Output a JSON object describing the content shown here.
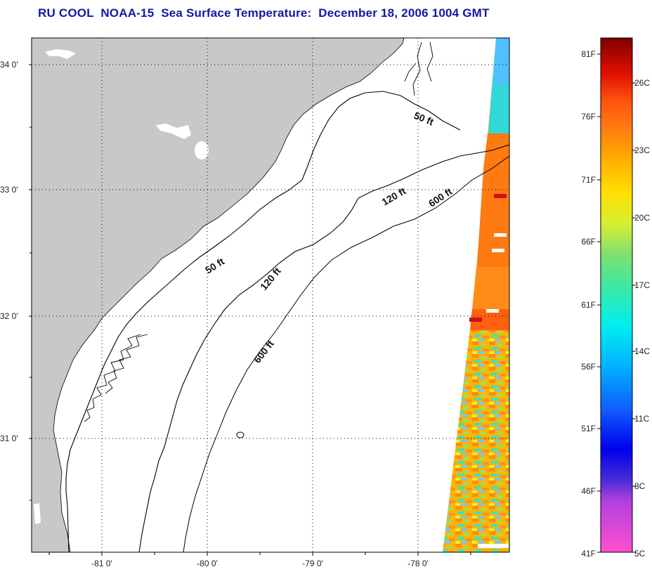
{
  "title": "RU COOL  NOAA-15  Sea Surface Temperature:  December 18, 2006 1004 GMT",
  "map": {
    "lat_labels": [
      "34 0'",
      "33 0'",
      "32 0'",
      "31 0'"
    ],
    "lon_labels": [
      "-81 0'",
      "-80 0'",
      "-79 0'",
      "-78 0'"
    ],
    "depth_labels": [
      "50 ft",
      "50 ft",
      "120 ft",
      "120 ft",
      "600 ft",
      "600 ft"
    ]
  },
  "colorbar": {
    "fahrenheit": [
      "81F",
      "76F",
      "71F",
      "66F",
      "61F",
      "56F",
      "51F",
      "46F",
      "41F"
    ],
    "celsius": [
      "26C",
      "23C",
      "20C",
      "17C",
      "14C",
      "11C",
      "8C",
      "5C"
    ]
  },
  "colors": {
    "title": "#1515a8",
    "land": "#c8c8c8",
    "grid": "#000000"
  }
}
